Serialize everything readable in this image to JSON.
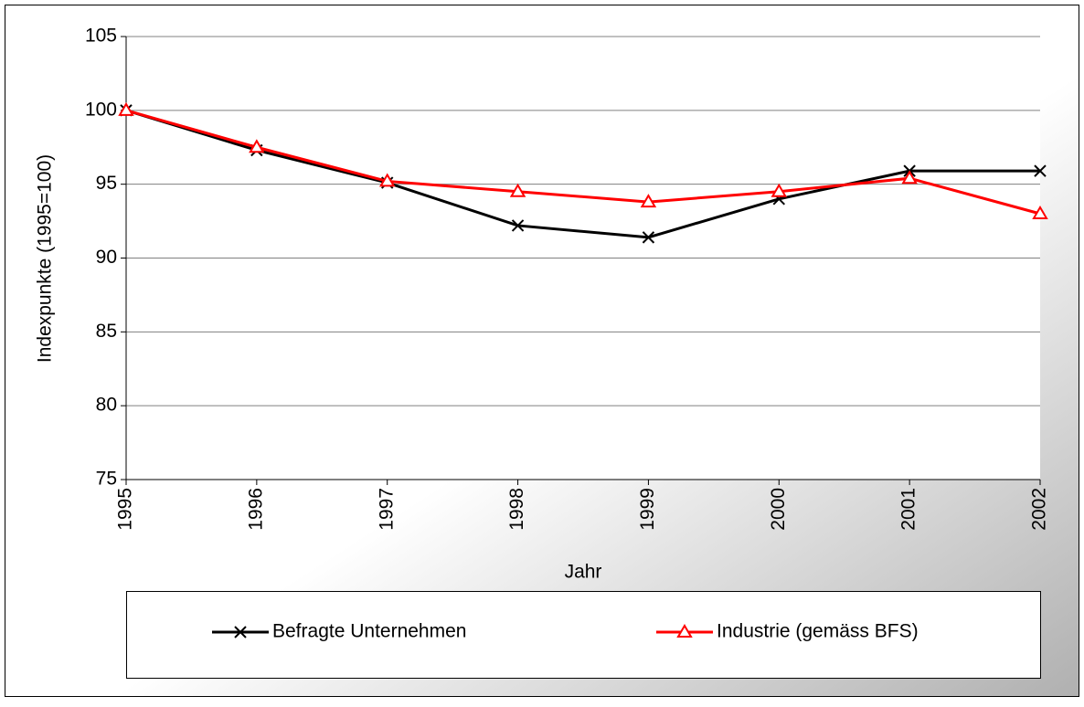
{
  "chart_data": {
    "type": "line",
    "x_label": "Jahr",
    "y_label": "Indexpunkte (1995=100)",
    "x": [
      1995,
      1996,
      1997,
      1998,
      1999,
      2000,
      2001,
      2002
    ],
    "xlim": [
      1995,
      2002
    ],
    "ylim": [
      75,
      105
    ],
    "yticks": [
      75,
      80,
      85,
      90,
      95,
      100,
      105
    ],
    "grid": true,
    "legend": "bottom",
    "series": [
      {
        "name": "Befragte Unternehmen",
        "color": "#000000",
        "marker": "x",
        "values": [
          100,
          97.3,
          95.1,
          92.2,
          91.4,
          94.0,
          95.9,
          95.9
        ]
      },
      {
        "name": "Industrie (gemäss BFS)",
        "color": "#ff0000",
        "marker": "triangle",
        "values": [
          100,
          97.5,
          95.2,
          94.5,
          93.8,
          94.5,
          95.4,
          93.0
        ]
      }
    ]
  }
}
